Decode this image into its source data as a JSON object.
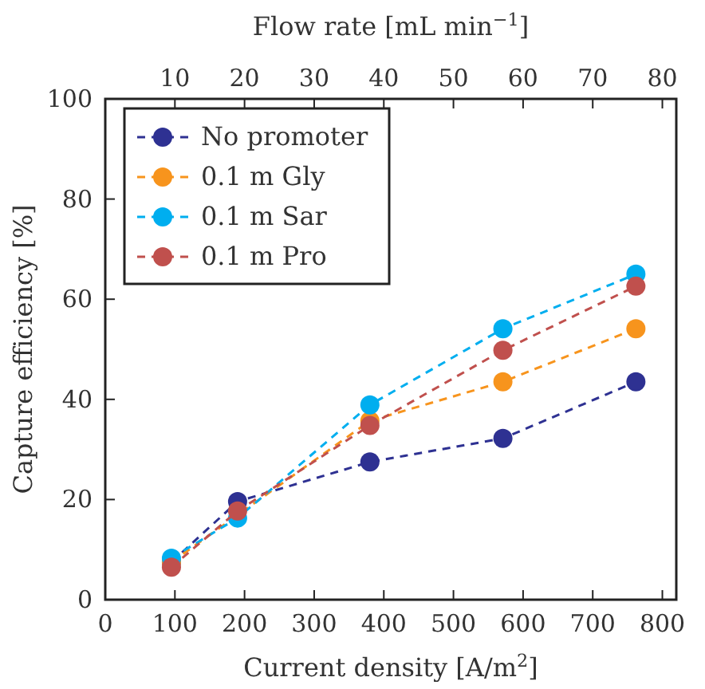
{
  "chart_data": {
    "type": "line",
    "xlabel": "Current density [A/m$^{2}$]",
    "ylabel": "Capture efficiency [%]",
    "x2label": "Flow rate [mL min$^{−1}$]",
    "x": [
      95,
      190,
      380,
      571,
      762
    ],
    "xlim": [
      0,
      820
    ],
    "xticks": [
      0,
      100,
      200,
      300,
      400,
      500,
      600,
      700,
      800
    ],
    "x2lim": [
      0,
      82
    ],
    "x2ticks": [
      10,
      20,
      30,
      40,
      50,
      60,
      70,
      80
    ],
    "ylim": [
      0,
      100
    ],
    "yticks": [
      0,
      20,
      40,
      60,
      80,
      100
    ],
    "marker": "circle",
    "line_style": "dashed",
    "legend": "top left",
    "grid": false,
    "series": [
      {
        "name": "No promoter",
        "color": "#2e3192",
        "values": [
          7.5,
          19.6,
          27.5,
          32.2,
          43.5
        ]
      },
      {
        "name": "0.1 m Gly",
        "color": "#f7941d",
        "values": [
          7.5,
          null,
          35.7,
          43.5,
          54.1
        ]
      },
      {
        "name": "0.1 m Sar",
        "color": "#00aeef",
        "values": [
          8.3,
          16.3,
          38.9,
          54.1,
          65
        ]
      },
      {
        "name": "0.1 m Pro",
        "color": "#c0504d",
        "values": [
          6.5,
          17.7,
          34.8,
          49.8,
          62.6
        ]
      }
    ]
  }
}
